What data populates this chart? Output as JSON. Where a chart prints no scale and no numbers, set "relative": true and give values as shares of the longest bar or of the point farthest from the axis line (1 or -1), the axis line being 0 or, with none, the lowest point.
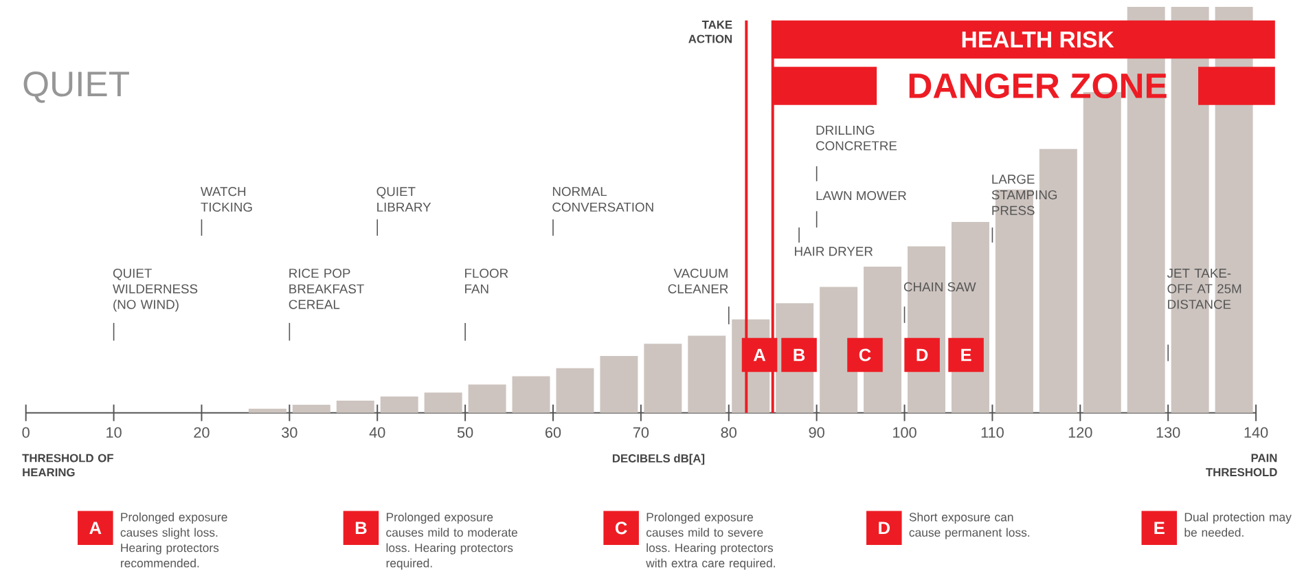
{
  "chart_data": {
    "type": "bar",
    "title": "QUIET",
    "xlabel": "DECIBELS dB[A]",
    "relative": true,
    "color": "#cdc4bf",
    "x": [
      27.5,
      32.5,
      37.5,
      42.5,
      47.5,
      52.5,
      57.5,
      62.5,
      67.5,
      72.5,
      77.5,
      82.5,
      87.5,
      92.5,
      97.5,
      102.5,
      107.5,
      112.5,
      117.5,
      122.5,
      127.5,
      132.5,
      137.5
    ],
    "values": [
      0.01,
      0.02,
      0.03,
      0.04,
      0.05,
      0.07,
      0.09,
      0.11,
      0.14,
      0.17,
      0.19,
      0.23,
      0.27,
      0.31,
      0.36,
      0.41,
      0.47,
      0.55,
      0.65,
      0.79,
      1,
      1,
      1
    ],
    "xlim": [
      0,
      140
    ],
    "xticks": [
      0,
      10,
      20,
      30,
      40,
      50,
      60,
      70,
      80,
      90,
      100,
      110,
      120,
      130,
      140
    ],
    "ref_lines": [
      {
        "axis": "x",
        "value": 82,
        "label": "TAKE ACTION",
        "color": "#ed1c24"
      },
      {
        "axis": "x",
        "value": 85,
        "color": "#ed1c24"
      }
    ],
    "annotations": [
      "QUIET WILDERNESS (NO WIND)",
      "WATCH TICKING",
      "RICE POP BREAKFAST CEREAL",
      "QUIET LIBRARY",
      "FLOOR FAN",
      "NORMAL CONVERSATION",
      "VACUUM CLEANER",
      "HAIR DRYER",
      "LAWN MOWER",
      "DRILLING CONCRETRE",
      {
        "text": "CHAIN SAW",
        "x": 100
      },
      {
        "text": "LARGE STAMPING PRESS",
        "x": 110
      },
      {
        "text": "JET TAKE-OFF AT 25M DISTANCE",
        "x": 130
      },
      {
        "text": "A",
        "x": 83.5
      },
      {
        "text": "B",
        "x": 88
      },
      {
        "text": "C",
        "x": 95.5
      },
      {
        "text": "D",
        "x": 102
      },
      {
        "text": "E",
        "x": 107
      },
      "Prolonged exposure causes slight loss. Hearing protectors recommended.",
      "Prolonged exposure causes mild to moderate loss. Hearing protectors required.",
      "Prolonged exposure causes mild to severe loss. Hearing protectors with extra care required.",
      "Short exposure can cause permanent loss.",
      "Dual protection may be needed.",
      "THRESHOLD OF HEARING",
      "PAIN THRESHOLD",
      "HEALTH RISK",
      "DANGER ZONE"
    ]
  }
}
